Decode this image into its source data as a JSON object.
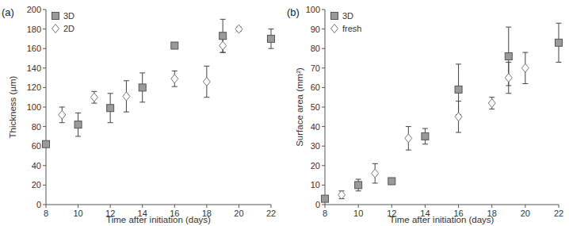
{
  "chart_data": [
    {
      "type": "scatter",
      "title": "(a)",
      "x_label": "Time after initiation (days)",
      "y_label": "Thickness (µm)",
      "xlim": [
        8,
        22
      ],
      "xticks": [
        8,
        10,
        12,
        14,
        16,
        18,
        20,
        22
      ],
      "ylim": [
        0,
        200
      ],
      "yticks": [
        0,
        20,
        40,
        60,
        80,
        100,
        120,
        140,
        160,
        180,
        200
      ],
      "grid": false,
      "legend": "top-left",
      "series": [
        {
          "name": "3D",
          "color": "#9a9a9a",
          "marker": "square",
          "x": [
            8,
            10,
            12,
            14,
            16,
            19,
            22
          ],
          "values": [
            62,
            82,
            99,
            120,
            163,
            173,
            170
          ],
          "errors": [
            2,
            12,
            15,
            15,
            3,
            17,
            10
          ]
        },
        {
          "name": "2D",
          "color": "#ffffff",
          "marker": "diamond",
          "x": [
            9,
            11,
            13,
            16,
            18,
            19,
            20
          ],
          "values": [
            92,
            110,
            111,
            129,
            126,
            163,
            180
          ],
          "errors": [
            8,
            6,
            16,
            8,
            16,
            7,
            2
          ]
        }
      ]
    },
    {
      "type": "scatter",
      "title": "(b)",
      "x_label": "Time after initiation (days)",
      "y_label": "Surface area (mm²)",
      "xlim": [
        8,
        22
      ],
      "xticks": [
        8,
        10,
        12,
        14,
        16,
        18,
        20,
        22
      ],
      "ylim": [
        0,
        100
      ],
      "yticks": [
        0,
        10,
        20,
        30,
        40,
        50,
        60,
        70,
        80,
        90,
        100
      ],
      "grid": false,
      "legend": "top-left",
      "series": [
        {
          "name": "3D",
          "color": "#9a9a9a",
          "marker": "square",
          "x": [
            8,
            10,
            12,
            14,
            16,
            19,
            22
          ],
          "values": [
            3,
            10,
            12,
            35,
            59,
            76,
            83
          ],
          "errors": [
            1,
            3,
            1,
            4,
            13,
            15,
            10
          ]
        },
        {
          "name": "fresh",
          "color": "#ffffff",
          "marker": "diamond",
          "x": [
            9,
            11,
            13,
            16,
            18,
            19,
            20
          ],
          "values": [
            5,
            16,
            34,
            45,
            52,
            65,
            70
          ],
          "errors": [
            2,
            5,
            6,
            8,
            3,
            8,
            8
          ]
        }
      ]
    }
  ]
}
